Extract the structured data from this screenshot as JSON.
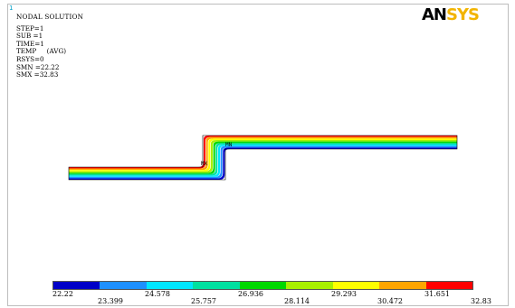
{
  "window_number": "1",
  "logo": {
    "part1": "AN",
    "part2": "SYS"
  },
  "info": {
    "title": "NODAL SOLUTION",
    "lines": [
      "STEP=1",
      "SUB =1",
      "TIME=1",
      "TEMP     (AVG)",
      "RSYS=0",
      "SMN =22.22",
      "SMX =32.83"
    ]
  },
  "markers": {
    "min_label": "MN",
    "max_label": "MX"
  },
  "legend": {
    "colors": [
      "#0000c8",
      "#1e90ff",
      "#00e6ff",
      "#00e0a0",
      "#00d800",
      "#a8f000",
      "#ffff00",
      "#ffa500",
      "#ff0000"
    ],
    "upper_labels": [
      "22.22",
      "24.578",
      "26.936",
      "29.293",
      "31.651"
    ],
    "lower_labels": [
      "23.399",
      "25.757",
      "28.114",
      "30.472",
      "32.83"
    ]
  }
}
